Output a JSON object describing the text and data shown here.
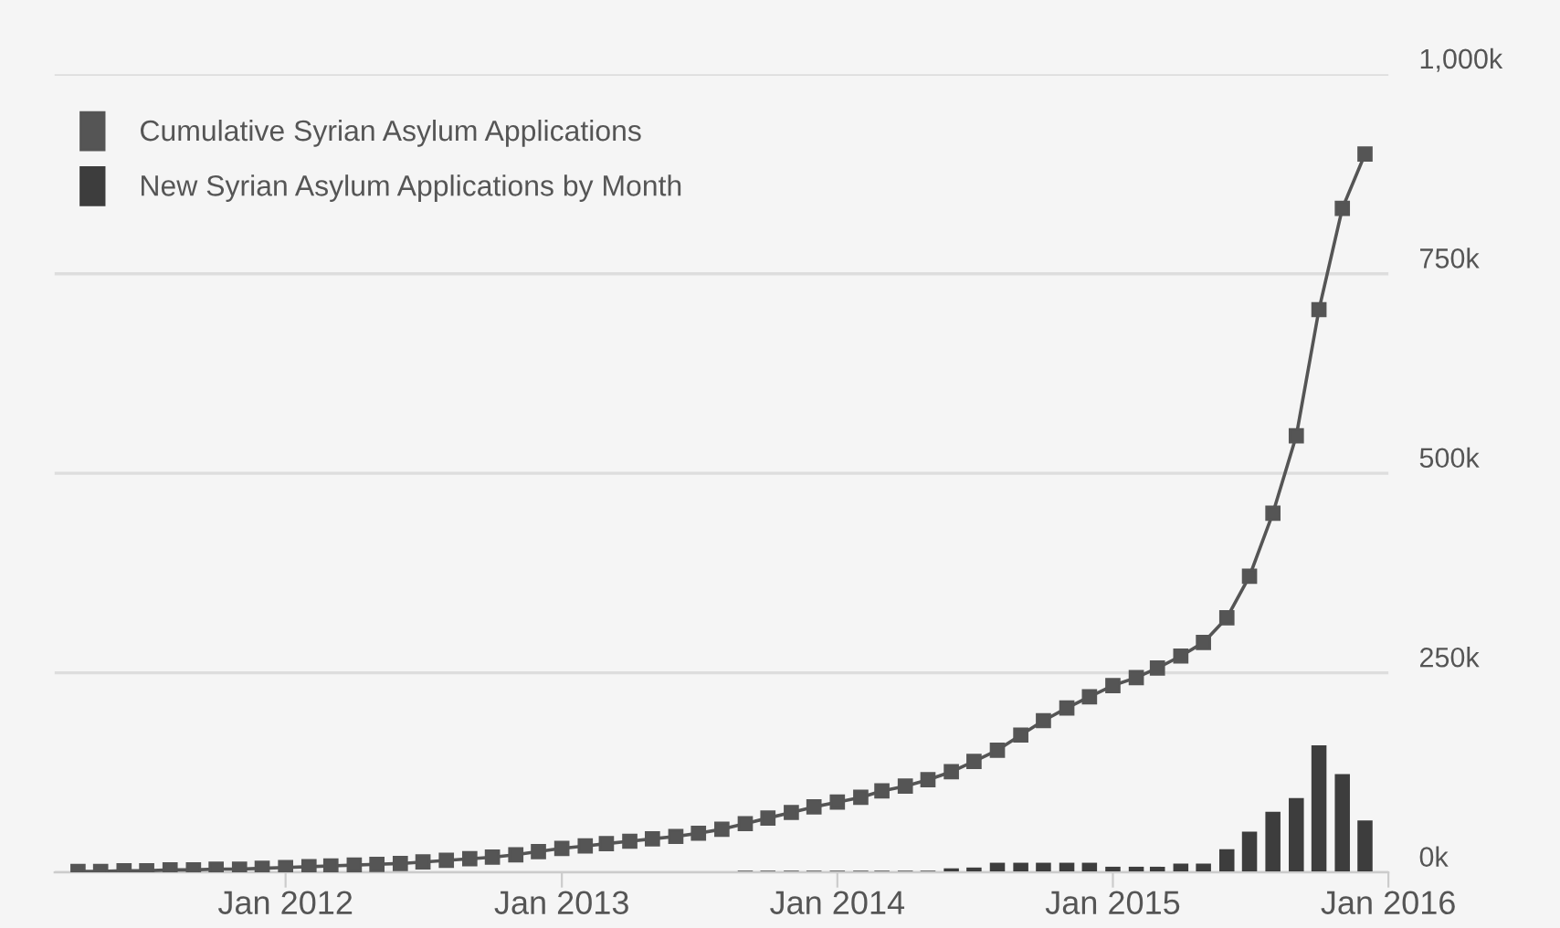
{
  "chart_data": {
    "type": "line",
    "xlim": [
      "2011-03-01",
      "2016-01-01"
    ],
    "xticks": [
      {
        "value": "2012-01-01",
        "label": "Jan 2012"
      },
      {
        "value": "2013-01-01",
        "label": "Jan 2013"
      },
      {
        "value": "2014-01-01",
        "label": "Jan 2014"
      },
      {
        "value": "2015-01-01",
        "label": "Jan 2015"
      },
      {
        "value": "2016-01-01",
        "label": "Jan 2016"
      }
    ],
    "ylim": [
      0,
      1000000
    ],
    "yticks": [
      {
        "value": 0,
        "label": "0k"
      },
      {
        "value": 250000,
        "label": "250k"
      },
      {
        "value": 500000,
        "label": "500k"
      },
      {
        "value": 750000,
        "label": "750k"
      },
      {
        "value": 1000000,
        "label": "1,000k"
      }
    ],
    "grid": "y",
    "legend": "top left",
    "series": [
      {
        "name": "Cumulative Syrian Asylum Applications",
        "color": "#555555",
        "marker": "square",
        "line_style": "solid",
        "x": [
          "2011-04",
          "2011-05",
          "2011-06",
          "2011-07",
          "2011-08",
          "2011-09",
          "2011-10",
          "2011-11",
          "2011-12",
          "2012-01",
          "2012-02",
          "2012-03",
          "2012-04",
          "2012-05",
          "2012-06",
          "2012-07",
          "2012-08",
          "2012-09",
          "2012-10",
          "2012-11",
          "2012-12",
          "2013-01",
          "2013-02",
          "2013-03",
          "2013-04",
          "2013-05",
          "2013-06",
          "2013-07",
          "2013-08",
          "2013-09",
          "2013-10",
          "2013-11",
          "2013-12",
          "2014-01",
          "2014-02",
          "2014-03",
          "2014-04",
          "2014-05",
          "2014-06",
          "2014-07",
          "2014-08",
          "2014-09",
          "2014-10",
          "2014-11",
          "2014-12",
          "2015-01",
          "2015-02",
          "2015-03",
          "2015-04",
          "2015-05",
          "2015-06",
          "2015-07",
          "2015-08",
          "2015-09",
          "2015-10",
          "2015-11",
          "2015-12"
        ],
        "values": [
          1000,
          1000,
          2000,
          2000,
          3000,
          3000,
          4000,
          4000,
          5000,
          6000,
          7000,
          8000,
          9000,
          10000,
          11000,
          13000,
          15000,
          17000,
          19000,
          22000,
          26000,
          30000,
          33000,
          36000,
          39000,
          42000,
          45000,
          49000,
          54000,
          61000,
          68000,
          75000,
          82000,
          88000,
          94000,
          102000,
          108000,
          116000,
          126000,
          139000,
          153000,
          172000,
          190000,
          206000,
          220000,
          234000,
          244000,
          256000,
          271000,
          288000,
          319000,
          371000,
          450000,
          547000,
          705000,
          832000,
          900000
        ]
      },
      {
        "name": "New Syrian Asylum Applications by Month",
        "type": "bar",
        "color": "#3d3d3d",
        "x": [
          "2013-09",
          "2013-10",
          "2013-11",
          "2013-12",
          "2014-01",
          "2014-02",
          "2014-03",
          "2014-04",
          "2014-05",
          "2014-06",
          "2014-07",
          "2014-08",
          "2014-09",
          "2014-10",
          "2014-11",
          "2014-12",
          "2015-01",
          "2015-02",
          "2015-03",
          "2015-04",
          "2015-05",
          "2015-06",
          "2015-07",
          "2015-08",
          "2015-09",
          "2015-10",
          "2015-11",
          "2015-12"
        ],
        "values": [
          2000,
          2000,
          2000,
          2000,
          2000,
          2000,
          2000,
          2000,
          2000,
          5000,
          6000,
          12000,
          12000,
          12000,
          12000,
          12000,
          7000,
          7000,
          7000,
          11000,
          11000,
          29000,
          51000,
          76000,
          93000,
          159000,
          123000,
          65000
        ]
      }
    ]
  }
}
